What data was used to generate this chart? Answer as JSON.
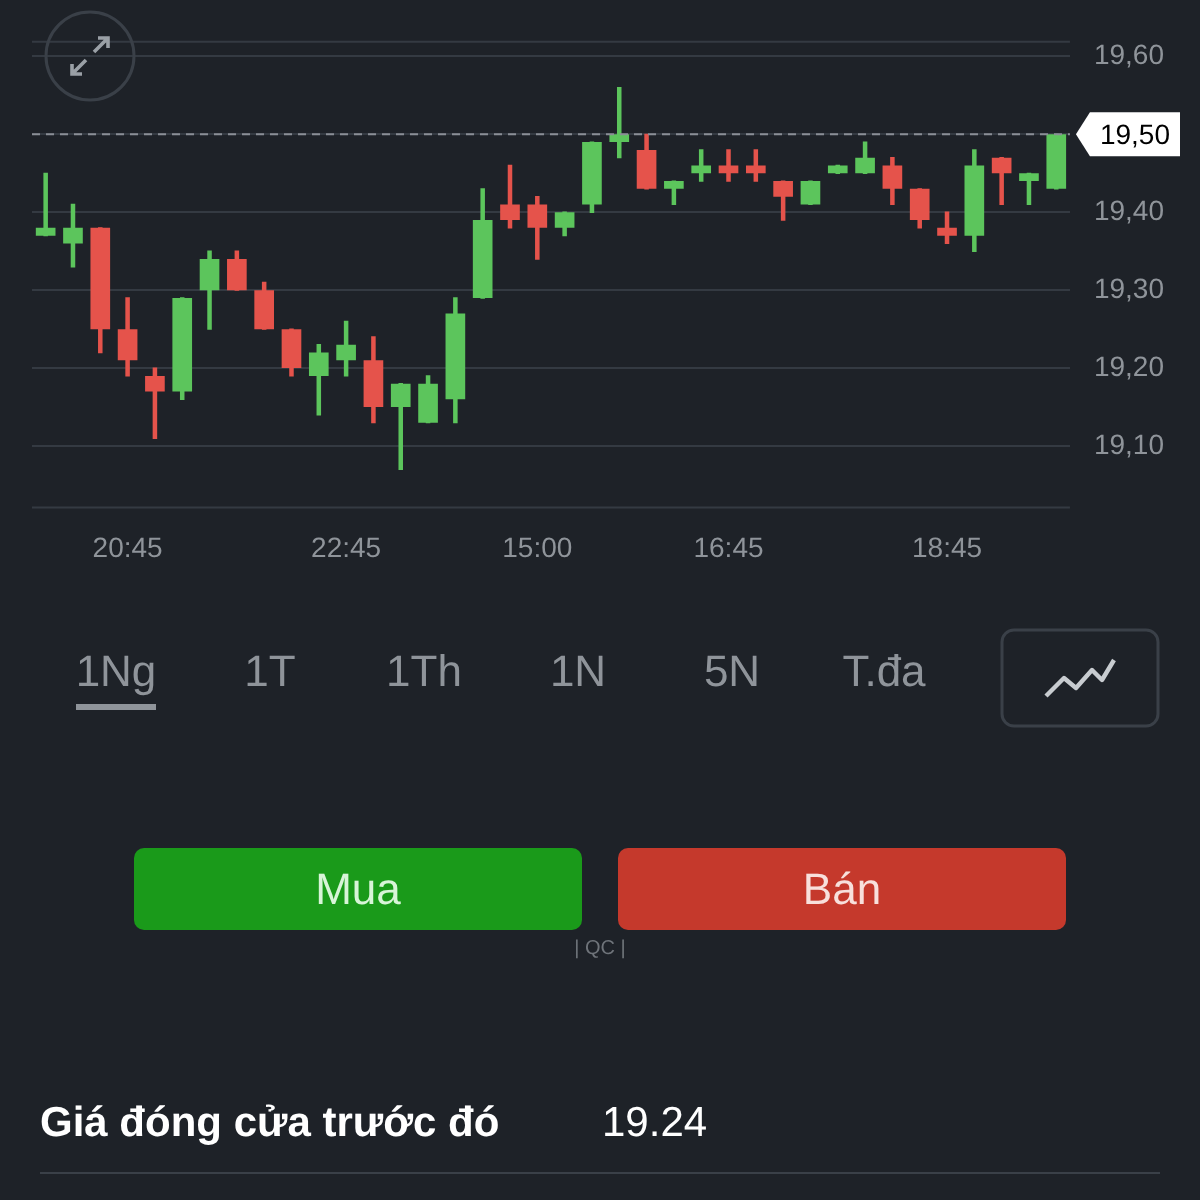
{
  "chart_data": {
    "type": "candlestick",
    "categories": [
      null,
      null,
      null,
      "20:45",
      null,
      null,
      null,
      null,
      null,
      null,
      null,
      "22:45",
      null,
      null,
      null,
      null,
      null,
      null,
      "15:00",
      null,
      null,
      null,
      null,
      null,
      null,
      "16:45",
      null,
      null,
      null,
      null,
      null,
      null,
      null,
      "18:45",
      null,
      null,
      null,
      null
    ],
    "ohlc": [
      [
        19.37,
        19.45,
        19.37,
        19.38
      ],
      [
        19.36,
        19.41,
        19.33,
        19.38
      ],
      [
        19.38,
        19.38,
        19.22,
        19.25
      ],
      [
        19.25,
        19.29,
        19.19,
        19.21
      ],
      [
        19.19,
        19.2,
        19.11,
        19.17
      ],
      [
        19.17,
        19.29,
        19.16,
        19.29
      ],
      [
        19.3,
        19.35,
        19.25,
        19.34
      ],
      [
        19.34,
        19.35,
        19.3,
        19.3
      ],
      [
        19.3,
        19.31,
        19.25,
        19.25
      ],
      [
        19.25,
        19.25,
        19.19,
        19.2
      ],
      [
        19.19,
        19.23,
        19.14,
        19.22
      ],
      [
        19.21,
        19.26,
        19.19,
        19.23
      ],
      [
        19.21,
        19.24,
        19.13,
        19.15
      ],
      [
        19.15,
        19.18,
        19.07,
        19.18
      ],
      [
        19.13,
        19.19,
        19.13,
        19.18
      ],
      [
        19.16,
        19.29,
        19.13,
        19.27
      ],
      [
        19.29,
        19.43,
        19.29,
        19.39
      ],
      [
        19.41,
        19.46,
        19.38,
        19.39
      ],
      [
        19.41,
        19.42,
        19.34,
        19.38
      ],
      [
        19.38,
        19.4,
        19.37,
        19.4
      ],
      [
        19.41,
        19.49,
        19.4,
        19.49
      ],
      [
        19.49,
        19.56,
        19.47,
        19.5
      ],
      [
        19.48,
        19.5,
        19.43,
        19.43
      ],
      [
        19.43,
        19.44,
        19.41,
        19.44
      ],
      [
        19.45,
        19.48,
        19.44,
        19.46
      ],
      [
        19.46,
        19.48,
        19.44,
        19.45
      ],
      [
        19.46,
        19.48,
        19.44,
        19.45
      ],
      [
        19.44,
        19.44,
        19.39,
        19.42
      ],
      [
        19.41,
        19.44,
        19.41,
        19.44
      ],
      [
        19.45,
        19.46,
        19.45,
        19.46
      ],
      [
        19.45,
        19.49,
        19.45,
        19.47
      ],
      [
        19.46,
        19.47,
        19.41,
        19.43
      ],
      [
        19.43,
        19.43,
        19.38,
        19.39
      ],
      [
        19.38,
        19.4,
        19.36,
        19.37
      ],
      [
        19.37,
        19.48,
        19.35,
        19.46
      ],
      [
        19.47,
        19.47,
        19.41,
        19.45
      ],
      [
        19.44,
        19.45,
        19.41,
        19.45
      ],
      [
        19.43,
        19.5,
        19.43,
        19.5
      ]
    ],
    "colors": [
      "#5cc55c",
      "#5cc55c",
      "#e5534b",
      "#e5534b",
      "#e5534b",
      "#5cc55c",
      "#5cc55c",
      "#e5534b",
      "#e5534b",
      "#e5534b",
      "#5cc55c",
      "#5cc55c",
      "#e5534b",
      "#5cc55c",
      "#5cc55c",
      "#5cc55c",
      "#5cc55c",
      "#e5534b",
      "#e5534b",
      "#5cc55c",
      "#5cc55c",
      "#5cc55c",
      "#e5534b",
      "#5cc55c",
      "#5cc55c",
      "#e5534b",
      "#e5534b",
      "#e5534b",
      "#5cc55c",
      "#5cc55c",
      "#5cc55c",
      "#e5534b",
      "#e5534b",
      "#e5534b",
      "#5cc55c",
      "#e5534b",
      "#5cc55c",
      "#5cc55c"
    ],
    "ylim": [
      19.02,
      19.62
    ],
    "yticks": [
      {
        "value": 19.1,
        "label": "19,10"
      },
      {
        "value": 19.2,
        "label": "19,20"
      },
      {
        "value": 19.3,
        "label": "19,30"
      },
      {
        "value": 19.4,
        "label": "19,40"
      },
      {
        "value": 19.5,
        "label": null
      },
      {
        "value": 19.6,
        "label": "19,60"
      }
    ],
    "grid": "y",
    "ref_lines": [
      {
        "axis": "y",
        "value": 19.5,
        "label": "19,50",
        "line_style": "dashed",
        "color": "#8a8f96"
      }
    ],
    "annotations": [
      "1Ng",
      "1T",
      "1Th",
      "1N",
      "5N",
      "T.đa",
      "Mua",
      "Bán",
      "| QC |",
      "Giá đóng cửa trước đó",
      "19.24"
    ]
  }
}
